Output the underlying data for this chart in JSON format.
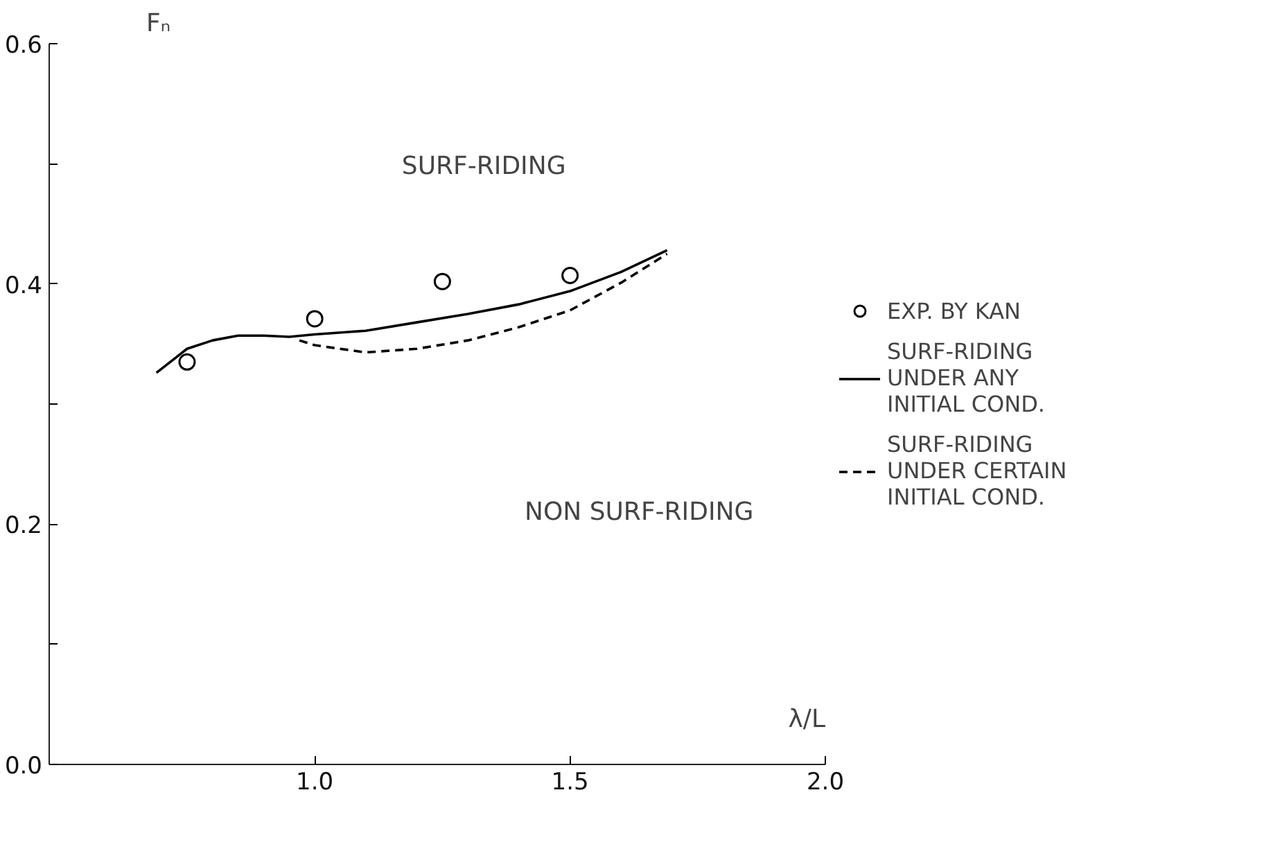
{
  "chart_data": {
    "type": "line",
    "xlabel": "λ/L",
    "ylabel": "Fₙ",
    "xlim": [
      0.48,
      2.0
    ],
    "xticks": [
      {
        "value": 1.0,
        "label": "1.0"
      },
      {
        "value": 1.5,
        "label": "1.5"
      },
      {
        "value": 2.0,
        "label": "2.0"
      }
    ],
    "ylim": [
      0.0,
      0.6
    ],
    "yticks": [
      {
        "value": 0.0,
        "label": "0.0"
      },
      {
        "value": 0.1,
        "label": null
      },
      {
        "value": 0.2,
        "label": "0.2"
      },
      {
        "value": 0.3,
        "label": null
      },
      {
        "value": 0.4,
        "label": "0.4"
      },
      {
        "value": 0.5,
        "label": null
      },
      {
        "value": 0.6,
        "label": "0.6"
      }
    ],
    "grid": false,
    "legend": "right",
    "series": [
      {
        "name": "EXP. BY KAN",
        "type": "scatter",
        "marker": "circle",
        "color": "#000000",
        "x": [
          0.75,
          1.0,
          1.25,
          1.5
        ],
        "values": [
          0.335,
          0.371,
          0.402,
          0.407
        ]
      },
      {
        "name": "SURF-RIDING\nUNDER ANY\nINITIAL COND.",
        "line_style": "solid",
        "color": "#000000",
        "x": [
          0.69,
          0.75,
          0.8,
          0.85,
          0.9,
          0.95,
          1.0,
          1.1,
          1.2,
          1.3,
          1.4,
          1.5,
          1.6,
          1.69
        ],
        "values": [
          0.326,
          0.346,
          0.353,
          0.357,
          0.357,
          0.356,
          0.358,
          0.361,
          0.368,
          0.375,
          0.383,
          0.394,
          0.41,
          0.428
        ]
      },
      {
        "name": "SURF-RIDING\nUNDER CERTAIN\nINITIAL COND.",
        "line_style": "dashed",
        "color": "#000000",
        "x": [
          0.97,
          1.0,
          1.1,
          1.2,
          1.3,
          1.4,
          1.5,
          1.6,
          1.69
        ],
        "values": [
          0.353,
          0.349,
          0.343,
          0.346,
          0.353,
          0.364,
          0.378,
          0.401,
          0.425
        ]
      }
    ],
    "annotations": [
      "SURF-RIDING",
      "NON SURF-RIDING"
    ]
  }
}
